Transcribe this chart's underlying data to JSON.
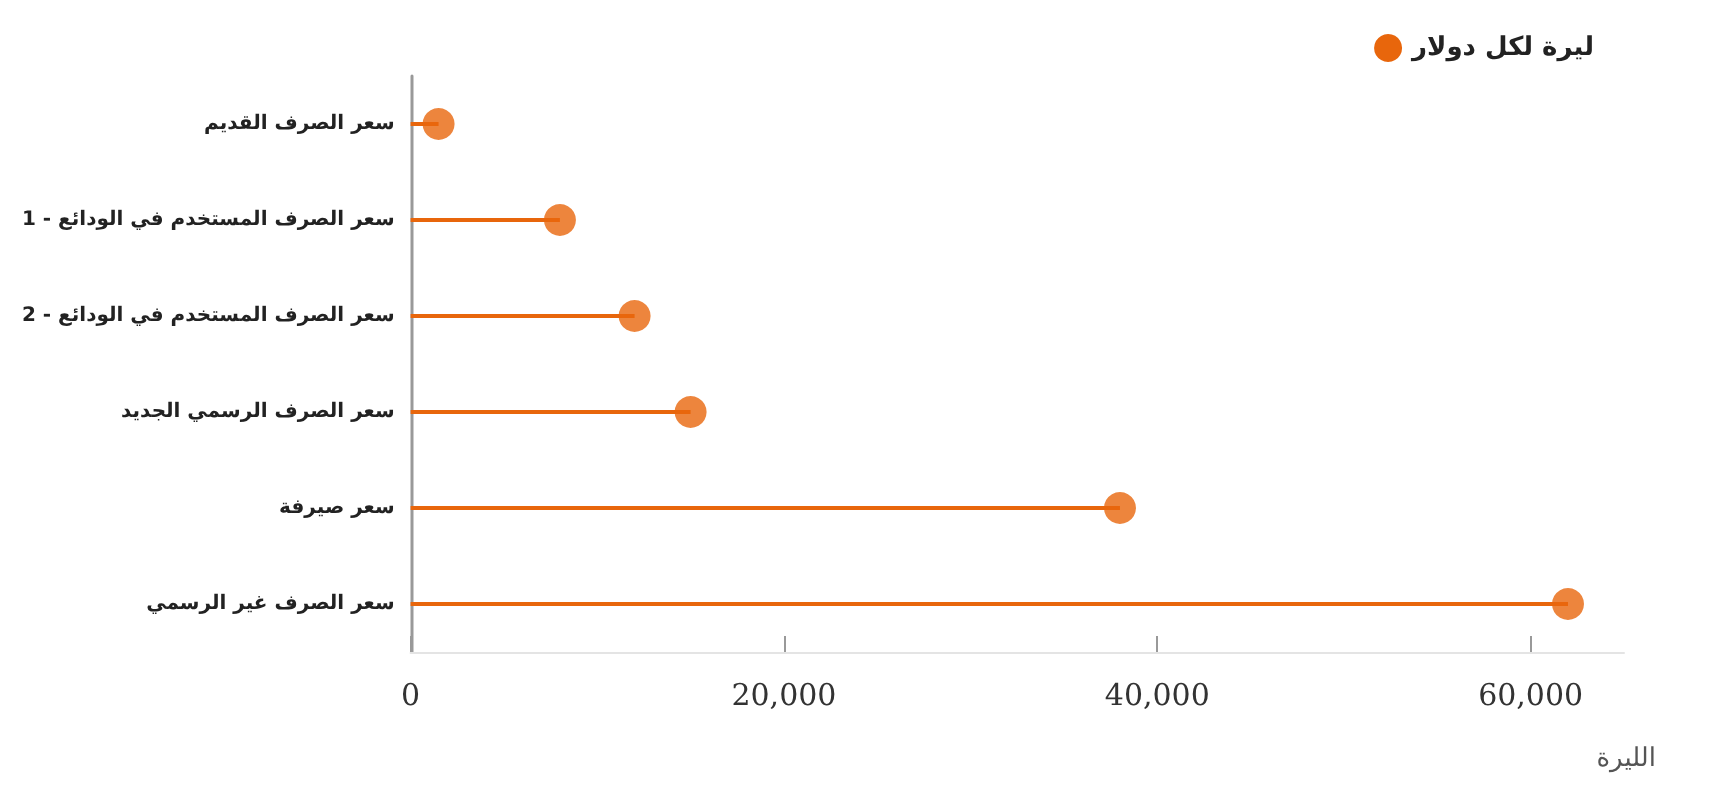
{
  "chart_data": {
    "type": "lollipop",
    "orientation": "horizontal",
    "xlabel": "الليرة",
    "categories": [
      "سعر الصرف القديم",
      "سعر الصرف المستخدم في الودائع - 1",
      "سعر الصرف المستخدم في الودائع - 2",
      "سعر الصرف الرسمي الجديد",
      "سعر صيرفة",
      "سعر الصرف غير الرسمي"
    ],
    "series": [
      {
        "name": "ليرة لكل دولار",
        "color": "#e8660c",
        "values": [
          1500,
          8000,
          12000,
          15000,
          38000,
          62000
        ]
      }
    ],
    "xlim": [
      0,
      65000
    ],
    "xticks": [
      0,
      {
        "value": 20000,
        "label": "20,000"
      },
      {
        "value": 40000,
        "label": "40,000"
      },
      {
        "value": 60000,
        "label": "60,000"
      }
    ],
    "grid": false,
    "legend": "top right",
    "marker": "circle"
  }
}
